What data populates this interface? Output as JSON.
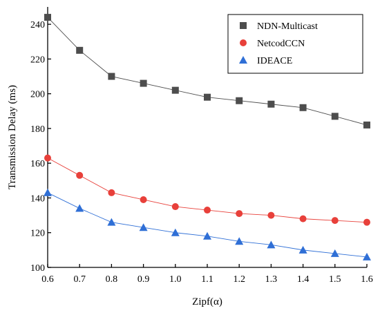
{
  "chart_data": {
    "type": "line",
    "xlabel": "Zipf(α)",
    "ylabel": "Transmission Delay (ms)",
    "x": [
      0.6,
      0.7,
      0.8,
      0.9,
      1.0,
      1.1,
      1.2,
      1.3,
      1.4,
      1.5,
      1.6
    ],
    "x_tick_labels": [
      "0.6",
      "0.7",
      "0.8",
      "0.9",
      "1.0",
      "1.1",
      "1.2",
      "1.3",
      "1.4",
      "1.5",
      "1.6"
    ],
    "xlim": [
      0.6,
      1.6
    ],
    "ylim": [
      100,
      250
    ],
    "y_ticks": [
      100,
      120,
      140,
      160,
      180,
      200,
      220,
      240
    ],
    "grid": false,
    "legend_position": "top-right",
    "series": [
      {
        "name": "NDN-Multicast",
        "marker": "square",
        "color": "#4d4d4d",
        "values": [
          244,
          225,
          210,
          206,
          202,
          198,
          196,
          194,
          192,
          187,
          182
        ]
      },
      {
        "name": "NetcodCCN",
        "marker": "circle",
        "color": "#e8403a",
        "values": [
          163,
          153,
          143,
          139,
          135,
          133,
          131,
          130,
          128,
          127,
          126
        ]
      },
      {
        "name": "IDEACE",
        "marker": "triangle",
        "color": "#2f6fd6",
        "values": [
          143,
          134,
          126,
          123,
          120,
          118,
          115,
          113,
          110,
          108,
          106
        ]
      }
    ]
  }
}
